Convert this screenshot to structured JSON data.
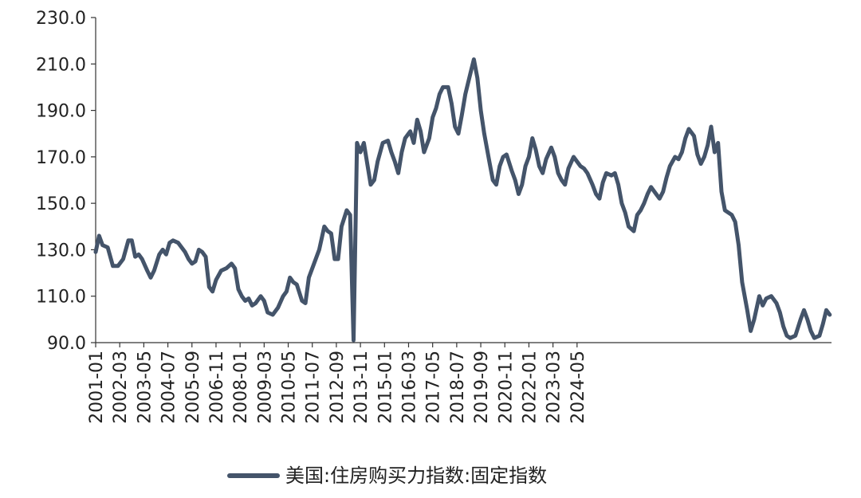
{
  "colors": {
    "series": "#44546a",
    "axis": "#333333",
    "text": "#222222"
  },
  "chart_data": {
    "type": "line",
    "title": "",
    "xlabel": "",
    "ylabel": "",
    "ylim": [
      90,
      230
    ],
    "yticks": [
      "90.0",
      "110.0",
      "130.0",
      "150.0",
      "170.0",
      "190.0",
      "210.0",
      "230.0"
    ],
    "xticks": [
      "2001-01",
      "2002-03",
      "2003-05",
      "2004-07",
      "2005-09",
      "2006-11",
      "2008-01",
      "2009-03",
      "2010-05",
      "2011-07",
      "2012-09",
      "2013-11",
      "2015-01",
      "2016-03",
      "2017-05",
      "2018-07",
      "2019-09",
      "2020-11",
      "2022-01",
      "2023-03",
      "2024-05"
    ],
    "grid": false,
    "legend_position": "bottom",
    "series": [
      {
        "name": "美国:住房购买力指数:固定指数",
        "points": [
          [
            "2001-01",
            129
          ],
          [
            "2001-03",
            136
          ],
          [
            "2001-05",
            132
          ],
          [
            "2001-08",
            131
          ],
          [
            "2001-11",
            123
          ],
          [
            "2002-02",
            123
          ],
          [
            "2002-05",
            126
          ],
          [
            "2002-08",
            134
          ],
          [
            "2002-10",
            134
          ],
          [
            "2002-12",
            127
          ],
          [
            "2003-02",
            128
          ],
          [
            "2003-04",
            126
          ],
          [
            "2003-07",
            121
          ],
          [
            "2003-09",
            118
          ],
          [
            "2003-11",
            121
          ],
          [
            "2004-02",
            128
          ],
          [
            "2004-04",
            130
          ],
          [
            "2004-06",
            128
          ],
          [
            "2004-08",
            133
          ],
          [
            "2004-10",
            134
          ],
          [
            "2005-01",
            133
          ],
          [
            "2005-03",
            131
          ],
          [
            "2005-05",
            129
          ],
          [
            "2005-07",
            126
          ],
          [
            "2005-09",
            124
          ],
          [
            "2005-11",
            125
          ],
          [
            "2006-01",
            130
          ],
          [
            "2006-03",
            129
          ],
          [
            "2006-05",
            127
          ],
          [
            "2006-07",
            114
          ],
          [
            "2006-09",
            112
          ],
          [
            "2006-11",
            117
          ],
          [
            "2007-02",
            121
          ],
          [
            "2007-05",
            122
          ],
          [
            "2007-08",
            124
          ],
          [
            "2007-10",
            122
          ],
          [
            "2007-12",
            113
          ],
          [
            "2008-02",
            110
          ],
          [
            "2008-04",
            108
          ],
          [
            "2008-06",
            109
          ],
          [
            "2008-08",
            106
          ],
          [
            "2008-10",
            107
          ],
          [
            "2009-01",
            110
          ],
          [
            "2009-03",
            108
          ],
          [
            "2009-05",
            103
          ],
          [
            "2009-08",
            102
          ],
          [
            "2009-11",
            105
          ],
          [
            "2010-02",
            110
          ],
          [
            "2010-04",
            112
          ],
          [
            "2010-06",
            118
          ],
          [
            "2010-08",
            116
          ],
          [
            "2010-10",
            115
          ],
          [
            "2011-01",
            108
          ],
          [
            "2011-03",
            107
          ],
          [
            "2011-05",
            118
          ],
          [
            "2011-08",
            124
          ],
          [
            "2011-11",
            130
          ],
          [
            "2012-02",
            140
          ],
          [
            "2012-04",
            138
          ],
          [
            "2012-06",
            137
          ],
          [
            "2012-08",
            126
          ],
          [
            "2012-10",
            126
          ],
          [
            "2012-12",
            140
          ],
          [
            "2013-03",
            147
          ],
          [
            "2013-05",
            145
          ],
          [
            "2013-07",
            91
          ],
          [
            "2013-09",
            176
          ],
          [
            "2013-11",
            172
          ],
          [
            "2014-01",
            176
          ],
          [
            "2014-03",
            167
          ],
          [
            "2014-05",
            158
          ],
          [
            "2014-07",
            160
          ],
          [
            "2014-09",
            168
          ],
          [
            "2014-12",
            176
          ],
          [
            "2015-03",
            177
          ],
          [
            "2015-05",
            172
          ],
          [
            "2015-07",
            168
          ],
          [
            "2015-09",
            163
          ],
          [
            "2015-11",
            172
          ],
          [
            "2016-01",
            178
          ],
          [
            "2016-04",
            181
          ],
          [
            "2016-06",
            176
          ],
          [
            "2016-08",
            186
          ],
          [
            "2016-10",
            181
          ],
          [
            "2016-12",
            172
          ],
          [
            "2017-03",
            178
          ],
          [
            "2017-05",
            187
          ],
          [
            "2017-07",
            191
          ],
          [
            "2017-09",
            197
          ],
          [
            "2017-11",
            200
          ],
          [
            "2018-02",
            200
          ],
          [
            "2018-04",
            193
          ],
          [
            "2018-06",
            183
          ],
          [
            "2018-08",
            180
          ],
          [
            "2018-10",
            188
          ],
          [
            "2018-12",
            197
          ],
          [
            "2019-03",
            206
          ],
          [
            "2019-05",
            212
          ],
          [
            "2019-07",
            204
          ],
          [
            "2019-09",
            190
          ],
          [
            "2019-11",
            180
          ],
          [
            "2020-02",
            168
          ],
          [
            "2020-04",
            160
          ],
          [
            "2020-06",
            158
          ],
          [
            "2020-08",
            166
          ],
          [
            "2020-10",
            170
          ],
          [
            "2020-12",
            171
          ],
          [
            "2021-03",
            164
          ],
          [
            "2021-05",
            160
          ],
          [
            "2021-07",
            154
          ],
          [
            "2021-09",
            158
          ],
          [
            "2021-11",
            166
          ],
          [
            "2022-01",
            170
          ],
          [
            "2022-03",
            178
          ],
          [
            "2022-05",
            173
          ],
          [
            "2022-07",
            166
          ],
          [
            "2022-09",
            163
          ],
          [
            "2022-11",
            169
          ],
          [
            "2023-02",
            174
          ],
          [
            "2023-04",
            170
          ],
          [
            "2023-06",
            163
          ],
          [
            "2023-08",
            160
          ],
          [
            "2023-10",
            158
          ],
          [
            "2023-12",
            165
          ],
          [
            "2024-03",
            170
          ],
          [
            "2024-05",
            168
          ],
          [
            "2024-07",
            166
          ],
          [
            "2024-09",
            165
          ],
          [
            "2024-11",
            163
          ],
          [
            "2025-02",
            158
          ],
          [
            "2025-04",
            154
          ],
          [
            "2025-06",
            152
          ],
          [
            "2025-08",
            159
          ],
          [
            "2025-10",
            163
          ],
          [
            "2026-01",
            162
          ],
          [
            "2026-03",
            163
          ],
          [
            "2026-05",
            158
          ],
          [
            "2026-07",
            150
          ],
          [
            "2026-09",
            146
          ],
          [
            "2026-11",
            140
          ],
          [
            "2027-02",
            138
          ],
          [
            "2027-04",
            145
          ],
          [
            "2027-06",
            147
          ],
          [
            "2027-08",
            150
          ],
          [
            "2027-10",
            154
          ],
          [
            "2027-12",
            157
          ],
          [
            "2028-03",
            154
          ],
          [
            "2028-05",
            152
          ],
          [
            "2028-07",
            155
          ],
          [
            "2028-09",
            161
          ],
          [
            "2028-11",
            166
          ],
          [
            "2029-02",
            170
          ],
          [
            "2029-04",
            169
          ],
          [
            "2029-06",
            172
          ],
          [
            "2029-08",
            178
          ],
          [
            "2029-10",
            182
          ],
          [
            "2030-01",
            179
          ],
          [
            "2030-03",
            171
          ],
          [
            "2030-05",
            167
          ],
          [
            "2030-07",
            170
          ],
          [
            "2030-09",
            175
          ],
          [
            "2030-11",
            183
          ],
          [
            "2031-01",
            172
          ],
          [
            "2031-03",
            176
          ],
          [
            "2031-05",
            155
          ],
          [
            "2031-07",
            147
          ],
          [
            "2031-09",
            146
          ],
          [
            "2031-11",
            145
          ],
          [
            "2032-01",
            142
          ],
          [
            "2032-03",
            132
          ],
          [
            "2032-05",
            116
          ],
          [
            "2032-08",
            104
          ],
          [
            "2032-10",
            95
          ],
          [
            "2032-12",
            100
          ],
          [
            "2033-03",
            110
          ],
          [
            "2033-05",
            106
          ],
          [
            "2033-07",
            109
          ],
          [
            "2033-10",
            110
          ],
          [
            "2034-01",
            107
          ],
          [
            "2034-03",
            103
          ],
          [
            "2034-05",
            97
          ],
          [
            "2034-07",
            93
          ],
          [
            "2034-09",
            92
          ],
          [
            "2034-12",
            93
          ],
          [
            "2035-03",
            100
          ],
          [
            "2035-05",
            104
          ],
          [
            "2035-07",
            100
          ],
          [
            "2035-09",
            95
          ],
          [
            "2035-11",
            92
          ],
          [
            "2036-02",
            93
          ],
          [
            "2036-04",
            98
          ],
          [
            "2036-06",
            104
          ],
          [
            "2036-08",
            102
          ]
        ]
      }
    ]
  }
}
